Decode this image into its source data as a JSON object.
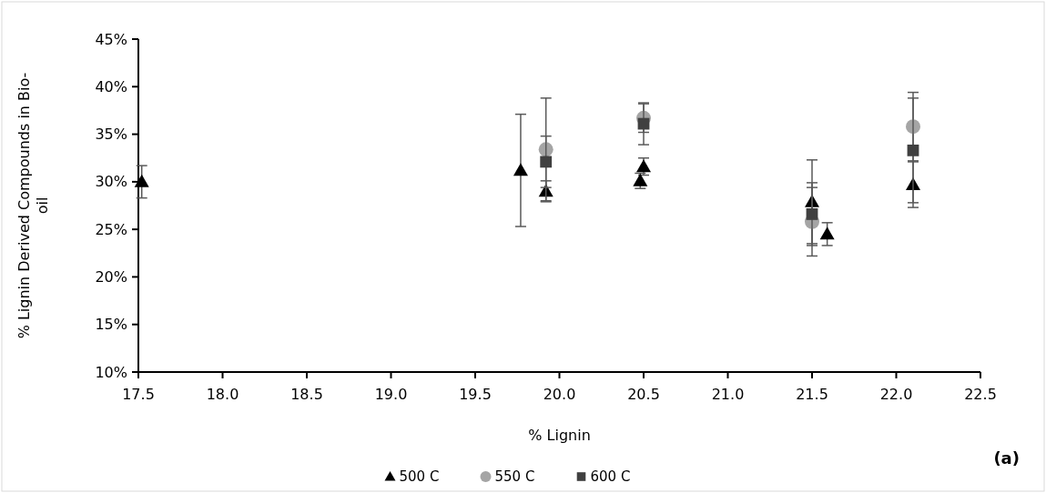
{
  "chart_data": {
    "type": "scatter",
    "xlabel": "% Lignin",
    "ylabel": "% Lignin Derived Compounds in Bio-oil",
    "xlim": [
      17.5,
      22.5
    ],
    "xticks": [
      {
        "value": 17.5,
        "label": "17.5"
      },
      {
        "value": 18,
        "label": "18.0"
      },
      {
        "value": 18.5,
        "label": "18.5"
      },
      {
        "value": 19,
        "label": "19.0"
      },
      {
        "value": 19.5,
        "label": "19.5"
      },
      {
        "value": 20,
        "label": "20.0"
      },
      {
        "value": 20.5,
        "label": "20.5"
      },
      {
        "value": 21,
        "label": "21.0"
      },
      {
        "value": 21.5,
        "label": "21.5"
      },
      {
        "value": 22,
        "label": "22.0"
      },
      {
        "value": 22.5,
        "label": "22.5"
      }
    ],
    "ylim": [
      10,
      45
    ],
    "yticks": [
      {
        "value": 10,
        "label": "10%"
      },
      {
        "value": 15,
        "label": "15%"
      },
      {
        "value": 20,
        "label": "20%"
      },
      {
        "value": 25,
        "label": "25%"
      },
      {
        "value": 30,
        "label": "30%"
      },
      {
        "value": 35,
        "label": "35%"
      },
      {
        "value": 40,
        "label": "40%"
      },
      {
        "value": 45,
        "label": "45%"
      }
    ],
    "grid": false,
    "legend": "bottom",
    "annotations": [
      "(a)"
    ],
    "series": [
      {
        "name": "500 C",
        "color": "#000000",
        "marker": "triangle",
        "x": [
          17.52,
          19.77,
          19.92,
          20.48,
          20.5,
          21.5,
          21.59,
          22.1
        ],
        "values": [
          30,
          31.2,
          29,
          30.1,
          31.6,
          27.9,
          24.5,
          29.7
        ],
        "errors": [
          1.7,
          5.9,
          1.1,
          0.8,
          0.9,
          4.4,
          1.2,
          2.4
        ]
      },
      {
        "name": "550 C",
        "color": "#a5a5a5",
        "marker": "circle",
        "x": [
          19.92,
          20.5,
          21.5,
          22.1
        ],
        "values": [
          33.4,
          36.7,
          25.8,
          35.8
        ],
        "errors": [
          5.4,
          1.5,
          3.6,
          3.6
        ]
      },
      {
        "name": "600 C",
        "color": "#404040",
        "marker": "square",
        "x": [
          19.92,
          20.5,
          21.5,
          22.1
        ],
        "values": [
          32.1,
          36.1,
          26.6,
          33.3
        ],
        "errors": [
          2.7,
          2.2,
          3.3,
          5.5
        ]
      }
    ]
  }
}
